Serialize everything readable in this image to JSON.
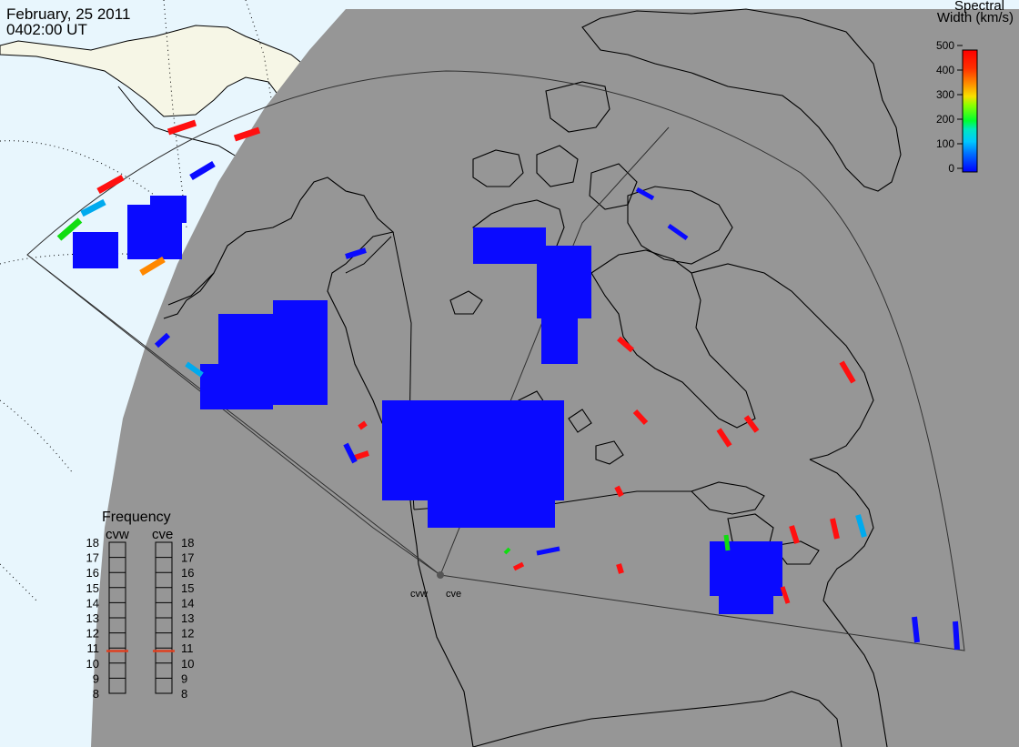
{
  "header": {
    "date": "February, 25 2011",
    "time": "0402:00 UT"
  },
  "colorbar": {
    "title_line1": "Spectral",
    "title_line2": "Width (km/s)",
    "ticks": [
      "500",
      "400",
      "300",
      "200",
      "100",
      "0"
    ],
    "colormap": [
      "#0000ff",
      "#0060ff",
      "#00b0ff",
      "#00e0e0",
      "#00ff60",
      "#60ff00",
      "#c0ff00",
      "#ffe000",
      "#ffa000",
      "#ff5000",
      "#ff0000"
    ]
  },
  "frequency_panel": {
    "title": "Frequency",
    "radars": [
      {
        "name": "cvw",
        "current_mhz": 10.8
      },
      {
        "name": "cve",
        "current_mhz": 10.8
      }
    ],
    "scale": [
      "18",
      "17",
      "16",
      "15",
      "14",
      "13",
      "12",
      "11",
      "10",
      "9",
      "8"
    ]
  },
  "radar_sites": {
    "cvw_label": "cvw",
    "cve_label": "cve"
  },
  "colors": {
    "night_region": "#969696",
    "day_ocean": "#e8f6fd",
    "day_land": "#f6f6e6",
    "coast": "#000000",
    "field_of_view": "#303030"
  },
  "field_of_view_radars": [
    "cvw",
    "cve"
  ]
}
